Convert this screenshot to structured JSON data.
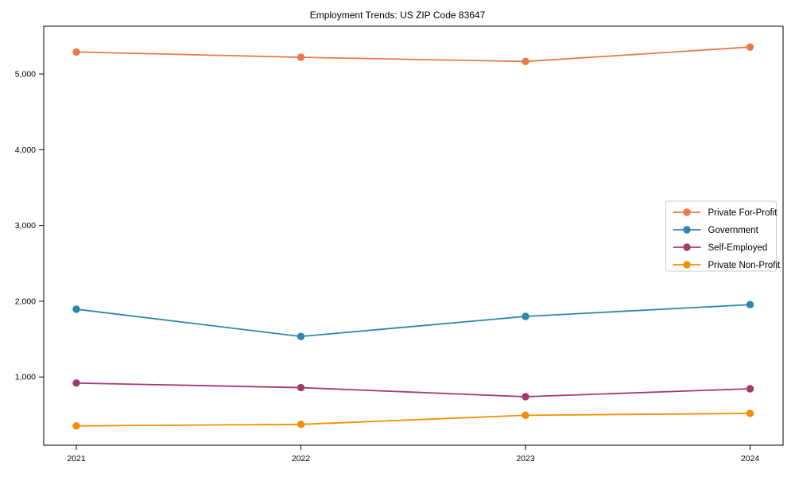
{
  "title": "Employment Trends: US ZIP Code 83647",
  "chart_data": {
    "type": "line",
    "x": [
      "2021",
      "2022",
      "2023",
      "2024"
    ],
    "series": [
      {
        "name": "Private For-Profit",
        "color": "#E8794A",
        "values": [
          5290,
          5220,
          5165,
          5355
        ]
      },
      {
        "name": "Government",
        "color": "#2E86AB",
        "values": [
          1895,
          1535,
          1800,
          1955
        ]
      },
      {
        "name": "Self-Employed",
        "color": "#A23B72",
        "values": [
          920,
          860,
          740,
          845
        ]
      },
      {
        "name": "Private Non-Profit",
        "color": "#F18F01",
        "values": [
          355,
          375,
          495,
          520
        ]
      }
    ],
    "title": "Employment Trends: US ZIP Code 83647",
    "xlabel": "",
    "ylabel": "",
    "ylim": [
      100,
      5630
    ],
    "yticks": [
      1000,
      2000,
      3000,
      4000,
      5000
    ],
    "ytick_labels": [
      "1,000",
      "2,000",
      "3,000",
      "4,000",
      "5,000"
    ],
    "grid": false,
    "marker": "circle",
    "legend_position": "center right",
    "frame_color": "#000000",
    "legend_border_color": "#cccccc",
    "background_color": "#ffffff"
  }
}
